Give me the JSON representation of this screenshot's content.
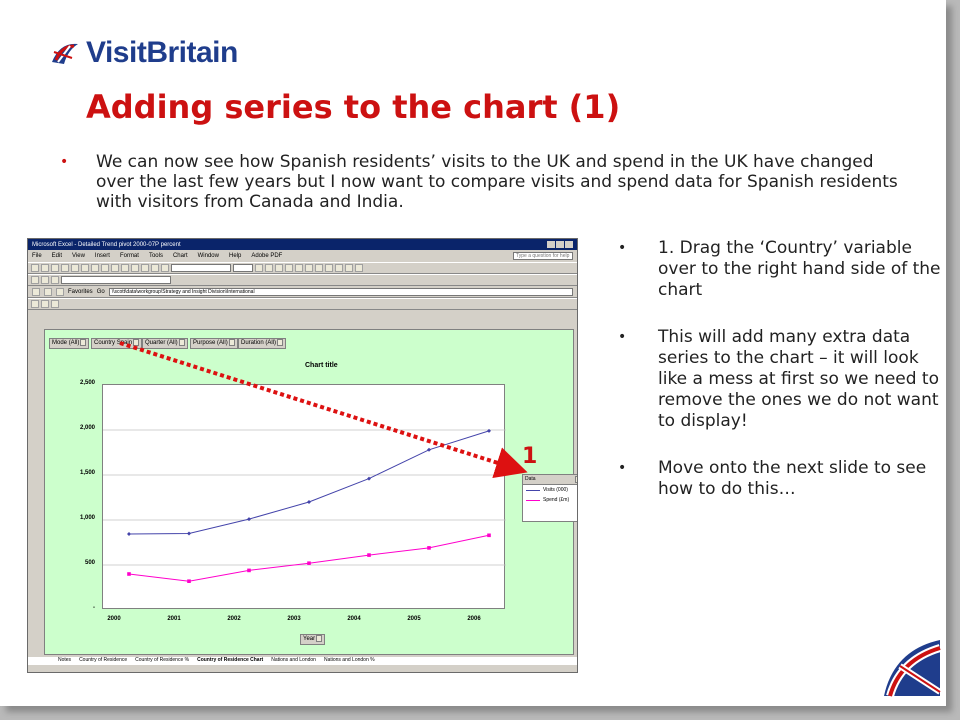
{
  "brand": {
    "logo_text": "VisitBritain"
  },
  "slide": {
    "title": "Adding series to the chart (1)",
    "intro": "We can now see how Spanish residents’ visits to the UK and spend in the UK have changed over the last few years but I now want to compare visits and spend data for Spanish residents with visitors from Canada and India.",
    "steps": [
      "1. Drag the ‘Country’ variable over to the right hand side of the chart",
      "This will add many extra data series to the chart – it will look like a mess at first so we need to remove the ones we do not want to display!",
      "Move onto the next slide to see how to do this…"
    ],
    "callout_number": "1",
    "bullet": "•"
  },
  "excel": {
    "window_title": "Microsoft Excel - Detailed Trend pivot 2000-07P percent",
    "menu": [
      "File",
      "Edit",
      "View",
      "Insert",
      "Format",
      "Tools",
      "Chart",
      "Window",
      "Help",
      "Adobe PDF"
    ],
    "help_placeholder": "Type a question for help",
    "address": "\\\\scott\\data\\workgroup\\Strategy and Insight Division\\International",
    "favorites_label": "Favorites",
    "go_label": "Go",
    "sheet_tabs": [
      "Notes",
      "Country of Residence",
      "Country of Residence %",
      "Country of Residence Chart",
      "Nations and London",
      "Nations and London %"
    ],
    "page_fields": [
      {
        "name": "Mode",
        "value": "(All)"
      },
      {
        "name": "Country",
        "value": "Spain"
      },
      {
        "name": "Quarter",
        "value": "(All)"
      },
      {
        "name": "Purpose",
        "value": "(All)"
      },
      {
        "name": "Duration",
        "value": "(All)"
      }
    ],
    "row_field": "Year",
    "legend_title": "Data"
  },
  "chart_data": {
    "type": "line",
    "title": "Chart title",
    "x": [
      "2000",
      "2001",
      "2002",
      "2003",
      "2004",
      "2005",
      "2006"
    ],
    "series": [
      {
        "name": "Visits (000)",
        "values": [
          845,
          850,
          1010,
          1200,
          1460,
          1780,
          1990
        ],
        "color": "#4444aa"
      },
      {
        "name": "Spend (£m)",
        "values": [
          400,
          320,
          440,
          520,
          610,
          690,
          830
        ],
        "color": "#ff00cc"
      }
    ],
    "yticks": [
      "2,500",
      "2,000",
      "1,500",
      "1,000",
      "500",
      "-"
    ],
    "ylim": [
      0,
      2500
    ],
    "grid": true,
    "legend": "right"
  }
}
